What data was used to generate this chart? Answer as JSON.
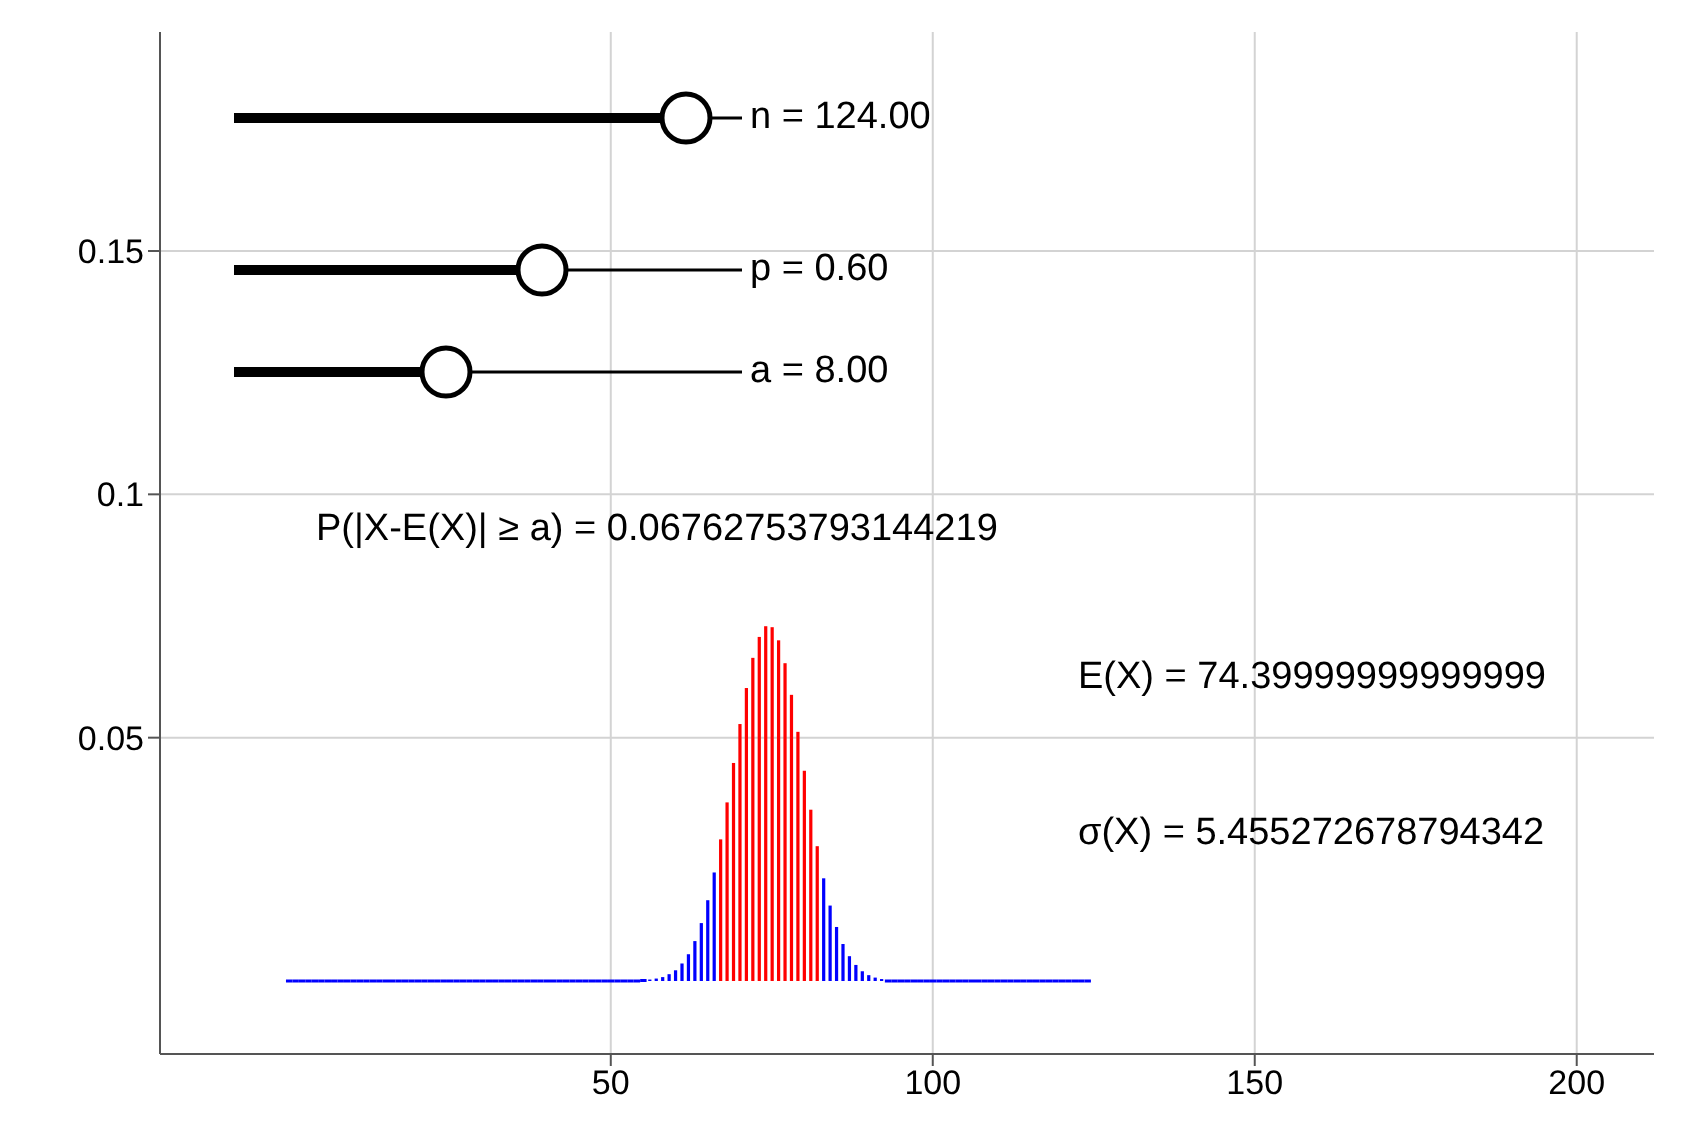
{
  "chart_data": {
    "type": "bar",
    "xlim": [
      -20,
      212
    ],
    "xticks": [
      50,
      100,
      150,
      200
    ],
    "ylim": [
      -0.015,
      0.195
    ],
    "yticks": [
      0.05,
      0.1,
      0.15
    ],
    "grid": true,
    "series": [
      {
        "color": "#0000ff",
        "x": [
          0,
          1,
          2,
          3,
          4,
          5,
          6,
          7,
          8,
          9,
          10,
          11,
          12,
          13,
          14,
          15,
          16,
          17,
          18,
          19,
          20,
          21,
          22,
          23,
          24,
          25,
          26,
          27,
          28,
          29,
          30,
          31,
          32,
          33,
          34,
          35,
          36,
          37,
          38,
          39,
          40,
          41,
          42,
          43,
          44,
          45,
          46,
          47,
          48,
          49,
          50,
          51,
          52,
          53,
          54,
          55,
          56,
          57,
          58,
          59,
          60,
          61,
          62,
          63,
          64,
          65,
          66,
          83,
          84,
          85,
          86,
          87,
          88,
          89,
          90,
          91,
          92,
          93,
          94,
          95,
          96,
          97,
          98,
          99,
          100,
          101,
          102,
          103,
          104,
          105,
          106,
          107,
          108,
          109,
          110,
          111,
          112,
          113,
          114,
          115,
          116,
          117,
          118,
          119,
          120,
          121,
          122,
          123,
          124
        ],
        "values": [
          0,
          0,
          0,
          0,
          0,
          0,
          0,
          0,
          0,
          0,
          0,
          0,
          0,
          0,
          0,
          0,
          0,
          0,
          0,
          0,
          0,
          0,
          0,
          0,
          0,
          0,
          0,
          0,
          0,
          0,
          0,
          0,
          0,
          0,
          0,
          0,
          0,
          0,
          0,
          0,
          0,
          0,
          0,
          0,
          0,
          0,
          0,
          0,
          0,
          0,
          0,
          0,
          0,
          0,
          0,
          0.0001,
          0.0003,
          0.0005,
          0.0008,
          0.0014,
          0.0022,
          0.0036,
          0.0055,
          0.0082,
          0.0119,
          0.0166,
          0.0223,
          0.0211,
          0.0155,
          0.0111,
          0.0076,
          0.0051,
          0.0033,
          0.002,
          0.0012,
          0.0007,
          0.0004,
          0,
          0,
          0,
          0,
          0,
          0,
          0,
          0,
          0,
          0,
          0,
          0,
          0,
          0,
          0,
          0,
          0,
          0,
          0,
          0,
          0,
          0,
          0,
          0,
          0,
          0,
          0,
          0,
          0,
          0,
          0,
          0
        ]
      },
      {
        "color": "#ff0000",
        "x": [
          67,
          68,
          69,
          70,
          71,
          72,
          73,
          74,
          75,
          76,
          77,
          78,
          79,
          80,
          81,
          82
        ],
        "values": [
          0.0291,
          0.0367,
          0.0448,
          0.0528,
          0.0602,
          0.0664,
          0.0707,
          0.0729,
          0.0727,
          0.07,
          0.0653,
          0.0588,
          0.0512,
          0.0432,
          0.0352,
          0.0277
        ]
      }
    ],
    "annotations": [
      "n = 124.00",
      "p = 0.60",
      "a = 8.00",
      "P(|X-E(X)| ≥ a) = 0.06762753793144219",
      "E(X) = 74.39999999999999",
      "σ(X) = 5.455272678794342"
    ]
  }
}
